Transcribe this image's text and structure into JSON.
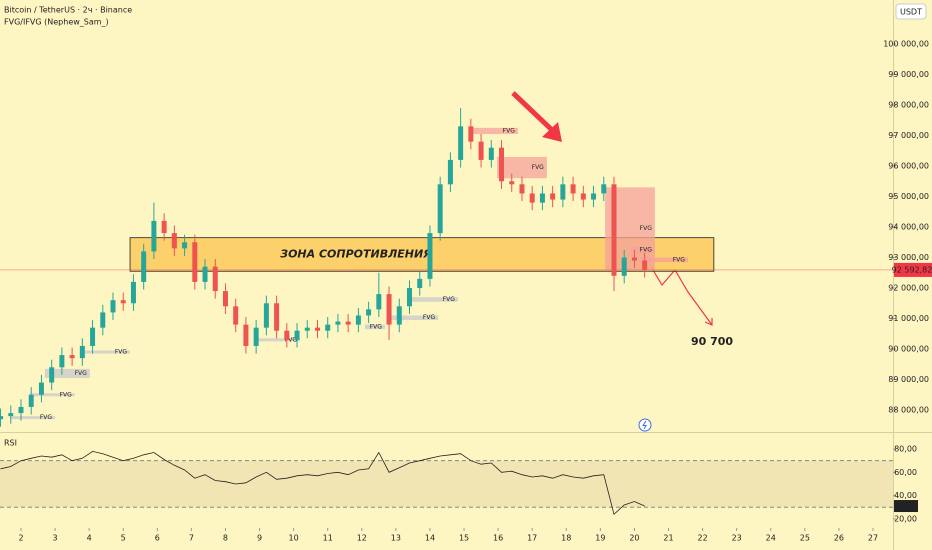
{
  "header": {
    "symbol": "Bitcoin / TetherUS · 2ч · Binance",
    "indicator": "FVG/IFVG (Nephew_Sam_)",
    "currency": "USDT"
  },
  "chart_data": [
    {
      "type": "candlestick",
      "x": [
        1.4,
        1.7,
        2.0,
        2.3,
        2.6,
        2.9,
        3.2,
        3.5,
        3.8,
        4.1,
        4.4,
        4.7,
        5.0,
        5.3,
        5.6,
        5.9,
        6.2,
        6.5,
        6.8,
        7.1,
        7.4,
        7.7,
        8.0,
        8.3,
        8.6,
        8.9,
        9.2,
        9.5,
        9.8,
        10.1,
        10.4,
        10.7,
        11.0,
        11.3,
        11.6,
        11.9,
        12.2,
        12.5,
        12.8,
        13.1,
        13.4,
        13.7,
        14.0,
        14.3,
        14.6,
        14.9,
        15.2,
        15.5,
        15.8,
        16.1,
        16.4,
        16.7,
        17.0,
        17.3,
        17.6,
        17.9,
        18.2,
        18.5,
        18.8,
        19.1,
        19.4,
        19.7,
        20.0,
        20.3
      ],
      "open": [
        87700,
        87800,
        87900,
        88100,
        88500,
        88900,
        89400,
        89800,
        89700,
        90100,
        90700,
        91200,
        91600,
        91500,
        92200,
        93200,
        94200,
        93800,
        93300,
        93500,
        92200,
        92700,
        91900,
        91400,
        90800,
        90100,
        90700,
        91500,
        90600,
        90300,
        90600,
        90700,
        90600,
        90800,
        90900,
        90800,
        91100,
        91300,
        91800,
        90800,
        91400,
        92000,
        92300,
        93800,
        95400,
        96200,
        97300,
        96800,
        96200,
        96600,
        95500,
        95400,
        95100,
        94800,
        95100,
        94900,
        95400,
        95100,
        94900,
        95100,
        95400,
        92400,
        93000,
        92900
      ],
      "high": [
        88050,
        88150,
        88350,
        88750,
        89150,
        89650,
        90050,
        90050,
        90350,
        90950,
        91450,
        91850,
        91850,
        92450,
        93450,
        94800,
        94450,
        94050,
        93750,
        93750,
        92950,
        92950,
        92150,
        91650,
        91050,
        90950,
        91750,
        91750,
        90850,
        90850,
        90950,
        90950,
        91050,
        91150,
        91150,
        91350,
        91550,
        92500,
        92050,
        91650,
        92250,
        92550,
        94050,
        95650,
        96450,
        97900,
        97550,
        97050,
        96850,
        96850,
        95750,
        95650,
        95350,
        95350,
        95350,
        95650,
        95650,
        95350,
        95350,
        95650,
        95650,
        93250,
        93250,
        93150
      ],
      "low": [
        87450,
        87550,
        87650,
        87850,
        88250,
        88650,
        89150,
        89450,
        89450,
        89850,
        90450,
        90950,
        91250,
        91250,
        91950,
        92950,
        93550,
        93050,
        93050,
        91950,
        91950,
        91650,
        91150,
        90550,
        89850,
        89850,
        90450,
        90350,
        90050,
        90050,
        90350,
        90350,
        90350,
        90550,
        90550,
        90550,
        90850,
        91050,
        90300,
        90550,
        91150,
        91750,
        92050,
        93550,
        95150,
        95950,
        96550,
        95950,
        95950,
        95250,
        95150,
        94850,
        94550,
        94550,
        94650,
        94650,
        94850,
        94650,
        94650,
        94850,
        91900,
        92150,
        92650,
        92343
      ],
      "close": [
        87800,
        87900,
        88100,
        88500,
        88900,
        89400,
        89800,
        89700,
        90100,
        90700,
        91200,
        91600,
        91500,
        92200,
        93200,
        94200,
        93800,
        93300,
        93500,
        92200,
        92700,
        91900,
        91400,
        90800,
        90100,
        90700,
        91500,
        90600,
        90300,
        90600,
        90700,
        90600,
        90800,
        90900,
        90800,
        91100,
        91300,
        91800,
        90800,
        91400,
        92000,
        92300,
        93800,
        95400,
        96200,
        97300,
        96800,
        96200,
        96600,
        95500,
        95400,
        95100,
        94800,
        95100,
        94900,
        95400,
        95100,
        94900,
        95100,
        95400,
        92400,
        93000,
        92900,
        92593
      ],
      "up_color": "#26a69a",
      "down_color": "#ef5350",
      "xlim": [
        1.384,
        27.587
      ],
      "xticks": [
        2,
        3,
        4,
        5,
        6,
        7,
        8,
        9,
        10,
        11,
        12,
        13,
        14,
        15,
        16,
        17,
        18,
        19,
        20,
        21,
        22,
        23,
        24,
        25,
        26,
        27
      ],
      "ylim": [
        87279,
        101443
      ],
      "yticks": [
        {
          "value": 88000,
          "label": "88 000,00"
        },
        {
          "value": 89000,
          "label": "89 000,00"
        },
        {
          "value": 90000,
          "label": "90 000,00"
        },
        {
          "value": 91000,
          "label": "91 000,00"
        },
        {
          "value": 92000,
          "label": "92 000,00"
        },
        {
          "value": 93000,
          "label": "93 000,00"
        },
        {
          "value": 94000,
          "label": "94 000,00"
        },
        {
          "value": 95000,
          "label": "95 000,00"
        },
        {
          "value": 96000,
          "label": "96 000,00"
        },
        {
          "value": 97000,
          "label": "97 000,00"
        },
        {
          "value": 98000,
          "label": "98 000,00"
        },
        {
          "value": 99000,
          "label": "99 000,00"
        },
        {
          "value": 100000,
          "label": "100 000,00"
        }
      ],
      "last_price": {
        "value": 92592.82,
        "label": "92 592,82",
        "color": "#f23645"
      },
      "resistance_zone": {
        "label": "ЗОНА СОПРОТИВЛЕНИЯ",
        "x": [
          5.2,
          22.33
        ],
        "y": [
          92550,
          93650
        ],
        "color": "#fbc34d"
      },
      "fvg": [
        {
          "label": "FVG",
          "x": [
            1.68,
            3.0
          ],
          "y": [
            87700,
            87800
          ],
          "color": "#c8c8c8"
        },
        {
          "label": "FVG",
          "x": [
            2.26,
            3.58
          ],
          "y": [
            88450,
            88550
          ],
          "color": "#c8c8c8"
        },
        {
          "label": "FVG",
          "x": [
            2.7,
            4.02
          ],
          "y": [
            89050,
            89350
          ],
          "color": "#c8c8c8"
        },
        {
          "label": "FVG",
          "x": [
            3.88,
            5.2
          ],
          "y": [
            89850,
            89950
          ],
          "color": "#c8c8c8"
        },
        {
          "label": "FVG",
          "x": [
            8.87,
            10.19
          ],
          "y": [
            90250,
            90350
          ],
          "color": "#c8c8c8"
        },
        {
          "label": "FVG",
          "x": [
            12.09,
            12.68
          ],
          "y": [
            90650,
            90800
          ],
          "color": "#c8c8c8"
        },
        {
          "label": "FVG",
          "x": [
            12.83,
            14.24
          ],
          "y": [
            90950,
            91100
          ],
          "color": "#c8c8c8"
        },
        {
          "label": "FVG",
          "x": [
            13.41,
            14.82
          ],
          "y": [
            91550,
            91700
          ],
          "color": "#c8c8c8"
        },
        {
          "label": "FVG",
          "x": [
            15.17,
            16.58
          ],
          "y": [
            97050,
            97250
          ],
          "color": "#f4a29a"
        },
        {
          "label": "FVG",
          "x": [
            15.97,
            17.43
          ],
          "y": [
            95600,
            96300
          ],
          "color": "#f4a29a"
        },
        {
          "label": "FVG",
          "x": [
            19.14,
            20.6
          ],
          "y": [
            92600,
            95300
          ],
          "color": "#f4a29a"
        },
        {
          "label": "FVG",
          "x": [
            19.87,
            20.6
          ],
          "y": [
            93150,
            93350
          ],
          "color": "#f4a29a"
        },
        {
          "label": "FVG",
          "x": [
            20.17,
            21.57
          ],
          "y": [
            92850,
            93000
          ],
          "color": "#f4a29a"
        }
      ],
      "annotation": "90 700"
    },
    {
      "type": "line",
      "title": "RSI",
      "color": "#222222",
      "values": [
        63,
        65,
        70,
        72,
        74,
        73,
        75,
        70,
        72,
        78,
        76,
        73,
        70,
        72,
        75,
        77,
        71,
        66,
        62,
        55,
        58,
        53,
        52,
        50,
        51,
        56,
        60,
        54,
        55,
        57,
        58,
        57,
        59,
        60,
        58,
        62,
        63,
        77,
        60,
        64,
        68,
        70,
        72,
        74,
        75,
        76,
        70,
        67,
        68,
        60,
        61,
        58,
        56,
        57,
        55,
        58,
        56,
        55,
        57,
        58,
        24,
        32,
        35,
        31.1
      ],
      "ylim": [
        17.4,
        94.6
      ],
      "yticks": [
        {
          "value": 20,
          "label": "20,00"
        },
        {
          "value": 40,
          "label": "40,00"
        },
        {
          "value": 60,
          "label": "60,00"
        },
        {
          "value": 80,
          "label": "80,00"
        }
      ],
      "band": [
        30,
        70
      ],
      "last_value": {
        "value": 31.1,
        "label": "31,10"
      }
    }
  ]
}
